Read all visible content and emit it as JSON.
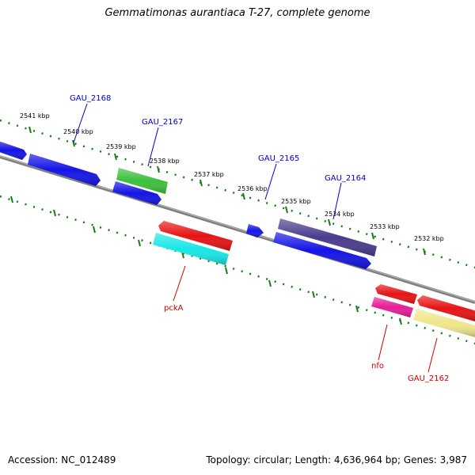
{
  "title": "Gemmatimonas aurantiaca T-27, complete genome",
  "footer": {
    "accession": "Accession: NC_012489",
    "summary": "Topology: circular; Length: 4,636,964 bp; Genes: 3,987"
  },
  "colors": {
    "backbone": "#808080",
    "ruler": "#1a7a1a",
    "label_forward": "#0000cc",
    "label_reverse": "#cc0000"
  },
  "ticks": [
    {
      "kbp": 2541,
      "label": "2541 kbp"
    },
    {
      "kbp": 2540,
      "label": "2540 kbp"
    },
    {
      "kbp": 2539,
      "label": "2539 kbp"
    },
    {
      "kbp": 2538,
      "label": "2538 kbp"
    },
    {
      "kbp": 2537,
      "label": "2537 kbp"
    },
    {
      "kbp": 2536,
      "label": "2536 kbp"
    },
    {
      "kbp": 2535,
      "label": "2535 kbp"
    },
    {
      "kbp": 2534,
      "label": "2534 kbp"
    },
    {
      "kbp": 2533,
      "label": "2533 kbp"
    },
    {
      "kbp": 2532,
      "label": "2532 kbp"
    }
  ],
  "gene_labels": [
    {
      "name": "GAU_2168",
      "strand": "forward"
    },
    {
      "name": "GAU_2167",
      "strand": "forward"
    },
    {
      "name": "GAU_2165",
      "strand": "forward"
    },
    {
      "name": "GAU_2164",
      "strand": "forward"
    },
    {
      "name": "pckA",
      "strand": "reverse"
    },
    {
      "name": "nfo",
      "strand": "reverse"
    },
    {
      "name": "GAU_2162",
      "strand": "reverse"
    }
  ],
  "features": [
    {
      "color": "#1414e6",
      "strand": "forward"
    },
    {
      "color": "#1414e6",
      "strand": "forward"
    },
    {
      "color": "#3cc03c",
      "strand": "forward"
    },
    {
      "color": "#1414e6",
      "strand": "forward"
    },
    {
      "color": "#e61414",
      "strand": "reverse"
    },
    {
      "color": "#18e6e6",
      "strand": "reverse"
    },
    {
      "color": "#1414e6",
      "strand": "forward"
    },
    {
      "color": "#4a3c8c",
      "strand": "forward"
    },
    {
      "color": "#1414e6",
      "strand": "forward"
    },
    {
      "color": "#e61414",
      "strand": "reverse"
    },
    {
      "color": "#e61e96",
      "strand": "reverse"
    },
    {
      "color": "#e61414",
      "strand": "reverse"
    },
    {
      "color": "#f0e68c",
      "strand": "reverse"
    }
  ]
}
